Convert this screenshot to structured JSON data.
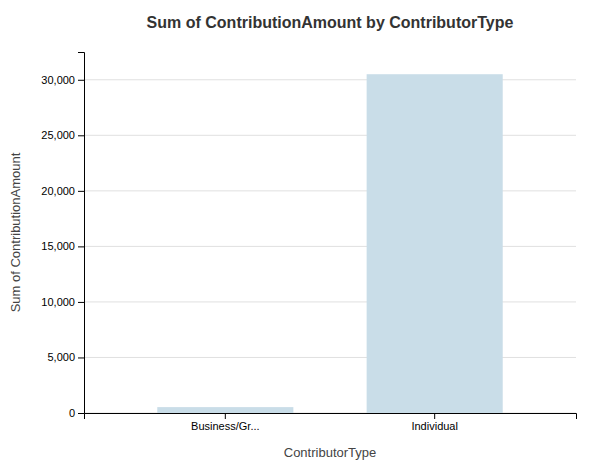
{
  "chart_data": {
    "type": "bar",
    "title": "Sum of ContributionAmount by ContributorType",
    "xlabel": "ContributorType",
    "ylabel": "Sum of ContributionAmount",
    "categories": [
      "Business/Gr...",
      "Individual"
    ],
    "values": [
      530,
      30500
    ],
    "color": "#c9dde8",
    "ylim": [
      0,
      32500
    ],
    "yticks": [
      0,
      {
        "value": 5000,
        "label": "5,000"
      },
      {
        "value": 10000,
        "label": "10,000"
      },
      {
        "value": 15000,
        "label": "15,000"
      },
      {
        "value": 20000,
        "label": "20,000"
      },
      {
        "value": 25000,
        "label": "25,000"
      },
      {
        "value": 30000,
        "label": "30,000"
      }
    ],
    "grid": true
  }
}
